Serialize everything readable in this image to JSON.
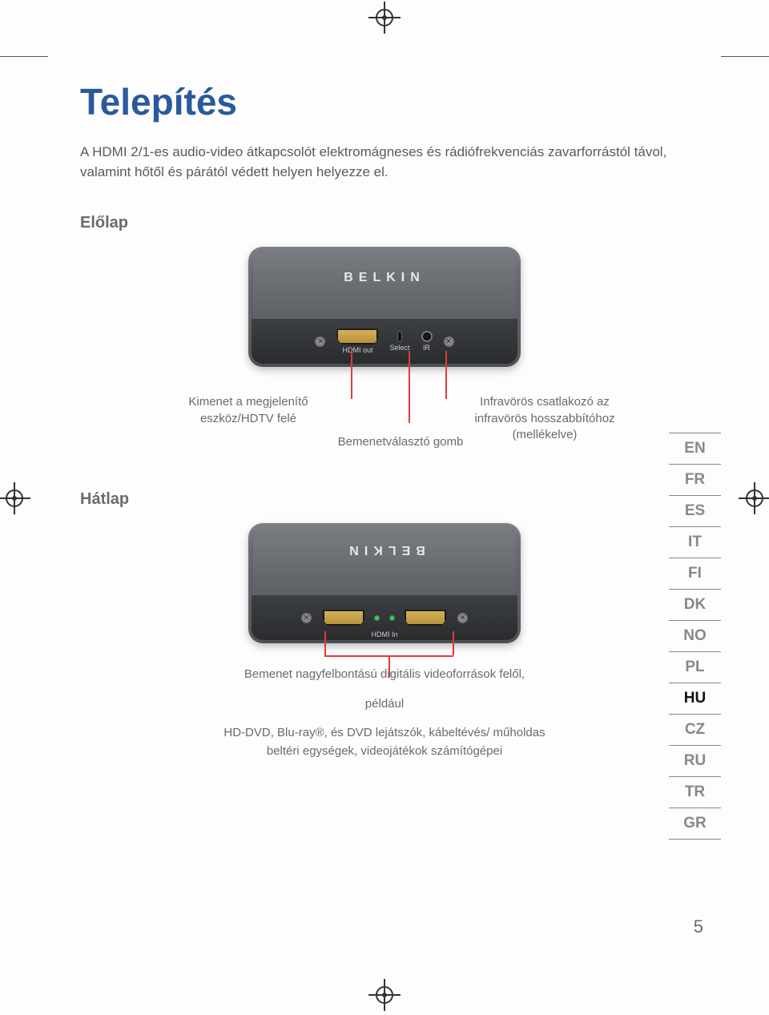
{
  "title": "Telepítés",
  "intro": "A HDMI 2/1-es audio-video átkapcsolót elektromágneses és rádiófrekvenciás zavarforrástól távol, valamint hőtől és párától védett helyen helyezze el.",
  "front_label": "Előlap",
  "back_label": "Hátlap",
  "brand": "BELKIN",
  "front_ports": {
    "hdmi_out": "HDMI out",
    "select": "Select",
    "ir": "IR"
  },
  "back_ports": {
    "hdmi_in": "HDMI In"
  },
  "callouts": {
    "output": "Kimenet a megjelenítő eszköz/HDTV felé",
    "select_btn": "Bemenetválasztó gomb",
    "ir_conn": "Infravörös csatlakozó az infravörös hosszabbítóhoz (mellékelve)",
    "input_heading": "Bemenet nagyfelbontású digitális videoforrások felől,",
    "input_eg": "például",
    "input_detail": "HD-DVD, Blu-ray®, és DVD lejátszók, kábeltévés/ műholdas beltéri egységek, videojátékok számítógépei"
  },
  "languages": [
    "EN",
    "FR",
    "ES",
    "IT",
    "FI",
    "DK",
    "NO",
    "PL",
    "HU",
    "CZ",
    "RU",
    "TR",
    "GR"
  ],
  "active_language": "HU",
  "page_number": "5",
  "colors": {
    "title": "#2a5a9c",
    "callout_line": "#e23a3a",
    "body_text": "#5a5a5a"
  }
}
